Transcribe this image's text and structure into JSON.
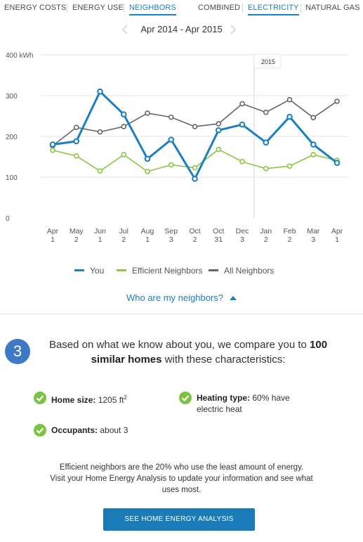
{
  "tabs": [
    {
      "label": "ENERGY COSTS",
      "active": false
    },
    {
      "label": "ENERGY USE",
      "active": false
    },
    {
      "label": "NEIGHBORS",
      "active": true
    }
  ],
  "fuel_tabs": [
    {
      "label": "COMBINED",
      "active": false
    },
    {
      "label": "ELECTRICITY",
      "active": true
    },
    {
      "label": "NATURAL GAS",
      "active": false
    }
  ],
  "date_range": {
    "label": "Apr 2014 - Apr 2015",
    "prev_icon": "chevron-left-icon",
    "next_icon": "chevron-right-icon"
  },
  "chart_data": {
    "type": "line",
    "x": [
      [
        "Apr",
        "1"
      ],
      [
        "May",
        "2"
      ],
      [
        "Jun",
        "1"
      ],
      [
        "Jul",
        "2"
      ],
      [
        "Aug",
        "1"
      ],
      [
        "Sep",
        "3"
      ],
      [
        "Oct",
        "2"
      ],
      [
        "Oct",
        "31"
      ],
      [
        "Dec",
        "3"
      ],
      [
        "Jan",
        "2"
      ],
      [
        "Feb",
        "2"
      ],
      [
        "Mar",
        "3"
      ],
      [
        "Apr",
        "1"
      ]
    ],
    "ylim": [
      0,
      400
    ],
    "yticks": [
      "0",
      "100",
      "200",
      "300",
      "400 kWh"
    ],
    "grid": true,
    "year_marker": {
      "label": "2015",
      "after_index": 8.5
    },
    "series": [
      {
        "name": "You",
        "color": "#1a7fc0",
        "values": [
          180,
          188,
          310,
          254,
          145,
          192,
          96,
          215,
          229,
          185,
          248,
          180,
          135
        ]
      },
      {
        "name": "Efficient Neighbors",
        "color": "#8cc63f",
        "values": [
          166,
          152,
          115,
          155,
          114,
          130,
          123,
          168,
          138,
          121,
          127,
          155,
          141
        ]
      },
      {
        "name": "All Neighbors",
        "color": "#666666",
        "values": [
          177,
          222,
          211,
          224,
          257,
          247,
          224,
          231,
          280,
          259,
          290,
          246,
          286
        ]
      }
    ],
    "legend_position": "bottom"
  },
  "legend": [
    {
      "label": "You",
      "color": "#1a7fc0"
    },
    {
      "label": "Efficient Neighbors",
      "color": "#8cc63f"
    },
    {
      "label": "All Neighbors",
      "color": "#666666"
    }
  ],
  "neighbors_link": {
    "label": "Who are my neighbors?",
    "icon": "caret-up-icon"
  },
  "step": {
    "number": "3",
    "intro_before": "Based on what we know about you, we compare you to ",
    "intro_bold": "100 similar homes",
    "intro_after": " with these characteristics:"
  },
  "characteristics": {
    "home_size": {
      "label": "Home size:",
      "value": "1205 ft",
      "sup": "2"
    },
    "heating": {
      "label": "Heating type:",
      "value": "60% have",
      "value2": "electric heat"
    },
    "occupants": {
      "label": "Occupants:",
      "value": "about 3"
    }
  },
  "footer": {
    "line1": "Efficient neighbors are the 20% who use the least amount of energy.",
    "line2": "Visit your Home Energy Analysis to update your information and see what",
    "line3": "uses most."
  },
  "cta": {
    "label": "SEE HOME ENERGY ANALYSIS"
  },
  "colors": {
    "accent": "#1a7fc0",
    "efficient": "#8cc63f",
    "all": "#666666",
    "badge": "#3f78c5",
    "check": "#7dc242"
  }
}
